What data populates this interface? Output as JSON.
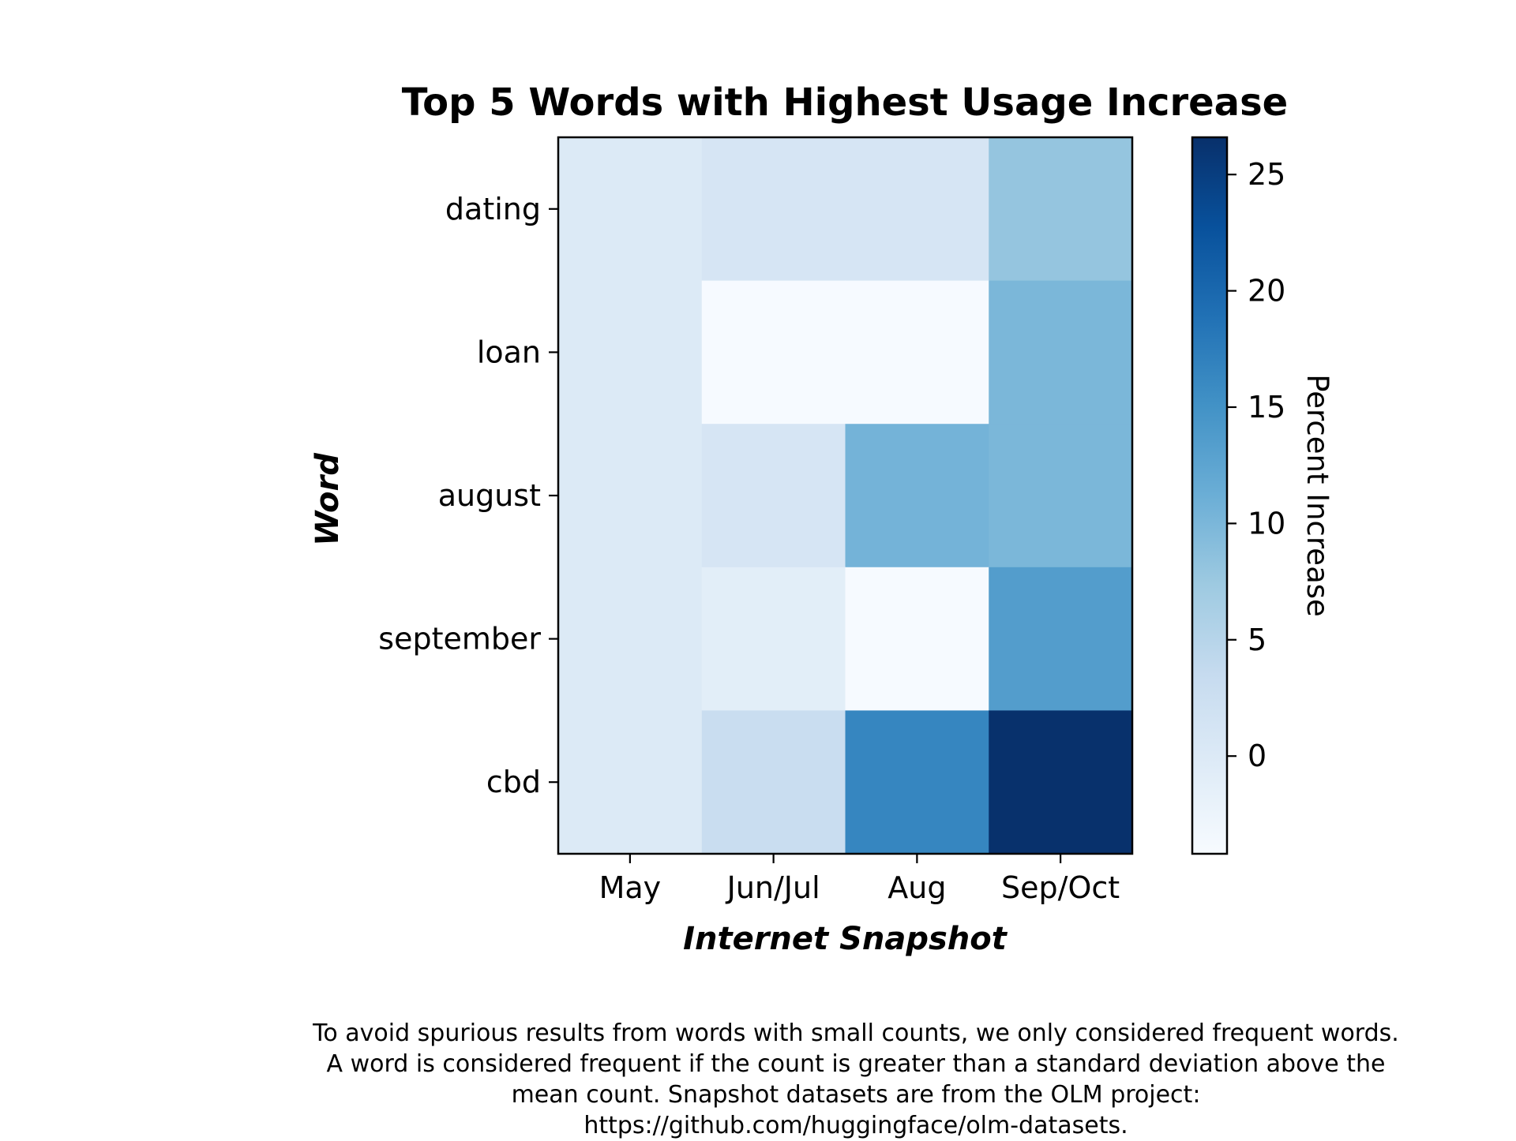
{
  "chart_data": {
    "type": "heatmap",
    "title": "Top 5 Words with Highest Usage Increase",
    "xlabel": "Internet Snapshot",
    "ylabel": "Word",
    "x_categories": [
      "May",
      "Jun/Jul",
      "Aug",
      "Sep/Oct"
    ],
    "y_categories": [
      "dating",
      "loan",
      "august",
      "september",
      "cbd"
    ],
    "values": [
      [
        0.0,
        1.0,
        1.0,
        8.0
      ],
      [
        0.0,
        -4.0,
        -4.0,
        10.0
      ],
      [
        0.0,
        1.0,
        10.5,
        10.0
      ],
      [
        0.0,
        -1.0,
        -4.0,
        13.5
      ],
      [
        0.0,
        3.0,
        16.5,
        26.5
      ]
    ],
    "colorbar": {
      "label": "Percent Increase",
      "range": [
        -4.2,
        26.6
      ],
      "ticks": [
        0,
        5,
        10,
        15,
        20,
        25
      ],
      "colormap": "Blues"
    },
    "grid": false
  },
  "caption": {
    "lines": [
      "To avoid spurious results from words with small counts, we only considered frequent words.",
      "A word is considered frequent if the count is greater than a standard deviation above the",
      "mean count. Snapshot datasets are from the OLM project:",
      "https://github.com/huggingface/olm-datasets."
    ]
  }
}
